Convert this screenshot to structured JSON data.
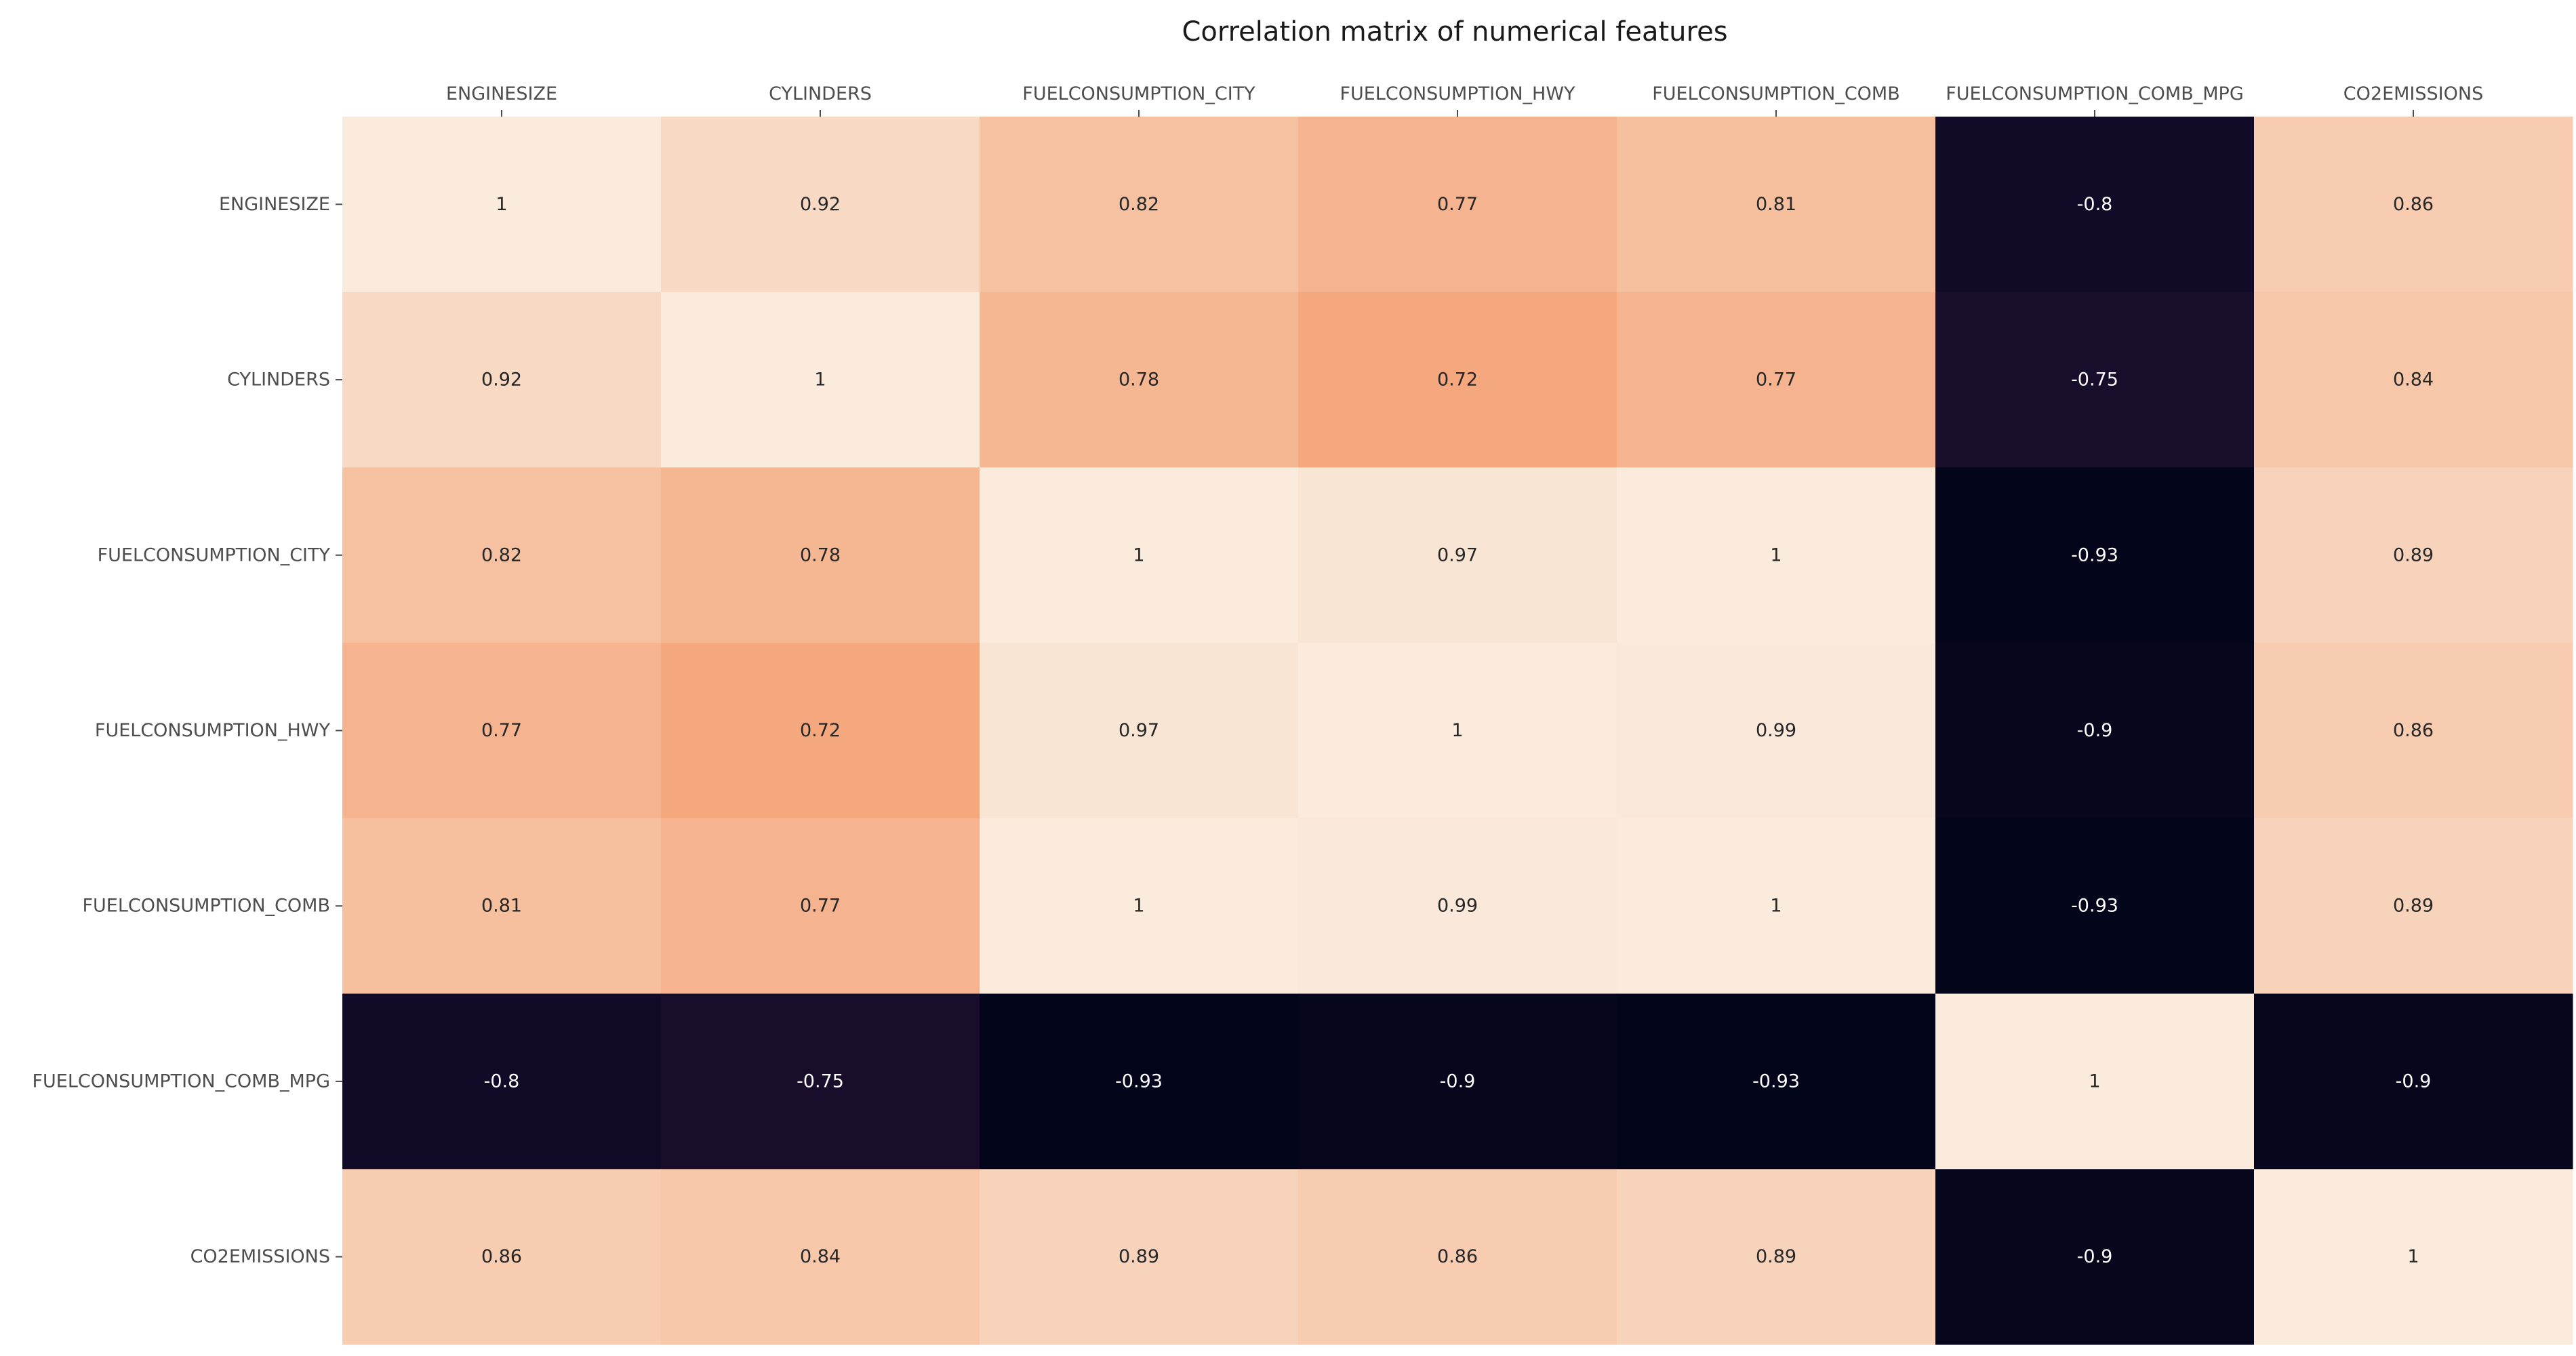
{
  "chart_data": {
    "type": "heatmap",
    "title": "Correlation matrix of numerical features",
    "xlabel": "",
    "ylabel": "",
    "x_categories": [
      "ENGINESIZE",
      "CYLINDERS",
      "FUELCONSUMPTION_CITY",
      "FUELCONSUMPTION_HWY",
      "FUELCONSUMPTION_COMB",
      "FUELCONSUMPTION_COMB_MPG",
      "CO2EMISSIONS"
    ],
    "y_categories": [
      "ENGINESIZE",
      "CYLINDERS",
      "FUELCONSUMPTION_CITY",
      "FUELCONSUMPTION_HWY",
      "FUELCONSUMPTION_COMB",
      "FUELCONSUMPTION_COMB_MPG",
      "CO2EMISSIONS"
    ],
    "values": [
      [
        1,
        0.92,
        0.82,
        0.77,
        0.81,
        -0.8,
        0.86
      ],
      [
        0.92,
        1,
        0.78,
        0.72,
        0.77,
        -0.75,
        0.84
      ],
      [
        0.82,
        0.78,
        1,
        0.97,
        1,
        -0.93,
        0.89
      ],
      [
        0.77,
        0.72,
        0.97,
        1,
        0.99,
        -0.9,
        0.86
      ],
      [
        0.81,
        0.77,
        1,
        0.99,
        1,
        -0.93,
        0.89
      ],
      [
        -0.8,
        -0.75,
        -0.93,
        -0.9,
        -0.93,
        1,
        -0.9
      ],
      [
        0.86,
        0.84,
        0.89,
        0.86,
        0.89,
        -0.9,
        1
      ]
    ],
    "value_range": [
      -0.93,
      1
    ],
    "colormap": "rocket",
    "annotations": true,
    "x_tick_position": "top",
    "colorbar": false
  }
}
